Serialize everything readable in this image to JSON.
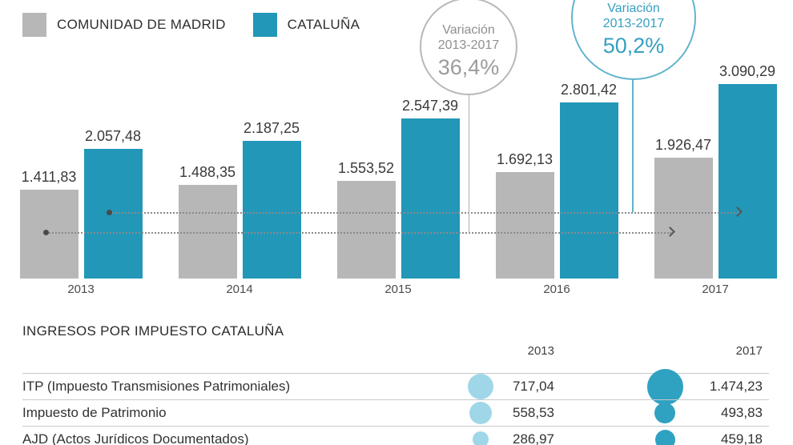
{
  "colors": {
    "madrid": "#b7b7b7",
    "cataluna": "#2297b8",
    "bubble_2013": "#9fd7e8",
    "bubble_2017": "#2fa2c2"
  },
  "legend": {
    "items": [
      {
        "label": "COMUNIDAD DE MADRID",
        "color": "#b7b7b7"
      },
      {
        "label": "CATALUÑA",
        "color": "#2297b8"
      }
    ]
  },
  "chart_data": {
    "type": "bar",
    "categories": [
      "2013",
      "2014",
      "2015",
      "2016",
      "2017"
    ],
    "series": [
      {
        "name": "COMUNIDAD DE MADRID",
        "color": "#b7b7b7",
        "values": [
          1411.83,
          1488.35,
          1553.52,
          1692.13,
          1926.47
        ],
        "labels": [
          "1.411,83",
          "1.488,35",
          "1.553,52",
          "1.692,13",
          "1.926,47"
        ]
      },
      {
        "name": "CATALUÑA",
        "color": "#2297b8",
        "values": [
          2057.48,
          2187.25,
          2547.39,
          2801.42,
          3090.29
        ],
        "labels": [
          "2.057,48",
          "2.187,25",
          "2.547,39",
          "2.801,42",
          "3.090,29"
        ]
      }
    ],
    "ylim": [
      0,
      3090.29
    ],
    "grid": false,
    "legend_position": "top-left",
    "annotations": [
      {
        "series": "COMUNIDAD DE MADRID",
        "line1": "Variación",
        "line2": "2013-2017",
        "value": "36,4%"
      },
      {
        "series": "CATALUÑA",
        "line1": "Variación",
        "line2": "2013-2017",
        "value": "50,2%"
      }
    ]
  },
  "table": {
    "title": "INGRESOS POR IMPUESTO CATALUÑA",
    "col_headers": [
      "2013",
      "2017"
    ],
    "rows": [
      {
        "label": "ITP (Impuesto Transmisiones Patrimoniales)",
        "value_2013": "717,04",
        "value_2017": "1.474,23",
        "num_2013": 717.04,
        "num_2017": 1474.23
      },
      {
        "label": "Impuesto de Patrimonio",
        "value_2013": "558,53",
        "value_2017": "493,83",
        "num_2013": 558.53,
        "num_2017": 493.83
      },
      {
        "label": "AJD (Actos Jurídicos Documentados)",
        "value_2013": "286,97",
        "value_2017": "459,18",
        "num_2013": 286.97,
        "num_2017": 459.18
      }
    ]
  }
}
